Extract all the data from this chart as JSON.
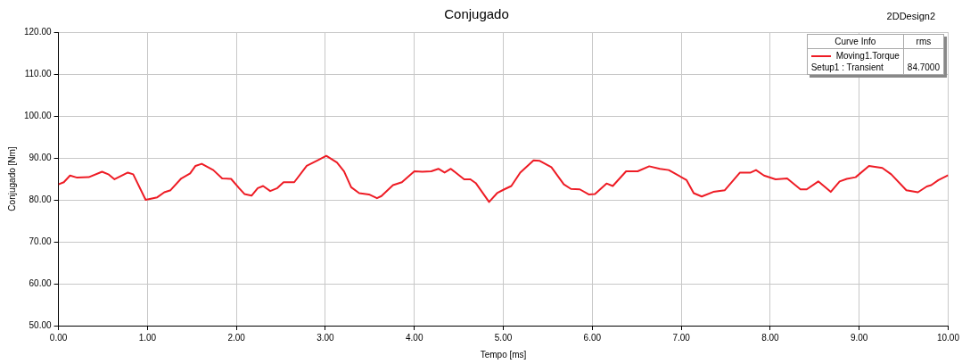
{
  "chart_data": {
    "type": "line",
    "title": "Conjugado",
    "xlabel": "Tempo [ms]",
    "ylabel": "Conjugado [Nm]",
    "xlim": [
      0,
      10
    ],
    "ylim": [
      50,
      120
    ],
    "xticks": [
      {
        "value": 0,
        "label": "0.00"
      },
      {
        "value": 1,
        "label": "1.00"
      },
      {
        "value": 2,
        "label": "2.00"
      },
      {
        "value": 3,
        "label": "3.00"
      },
      {
        "value": 4,
        "label": "4.00"
      },
      {
        "value": 5,
        "label": "5.00"
      },
      {
        "value": 6,
        "label": "6.00"
      },
      {
        "value": 7,
        "label": "7.00"
      },
      {
        "value": 8,
        "label": "8.00"
      },
      {
        "value": 9,
        "label": "9.00"
      },
      {
        "value": 10,
        "label": "10.00"
      }
    ],
    "yticks": [
      {
        "value": 50,
        "label": "50.00"
      },
      {
        "value": 60,
        "label": "60.00"
      },
      {
        "value": 70,
        "label": "70.00"
      },
      {
        "value": 80,
        "label": "80.00"
      },
      {
        "value": 90,
        "label": "90.00"
      },
      {
        "value": 100,
        "label": "100.00"
      },
      {
        "value": 110,
        "label": "110.00"
      },
      {
        "value": 120,
        "label": "120.00"
      }
    ],
    "grid": true,
    "legend": "top right",
    "legend_title": "Curve Info",
    "annotations": [
      "rms",
      "Setup1 : Transient",
      "84.7000",
      "2DDesign2"
    ],
    "x": [
      0,
      0.06,
      0.13,
      0.21,
      0.34,
      0.49,
      0.56,
      0.63,
      0.78,
      0.84,
      0.98,
      1.11,
      1.19,
      1.26,
      1.38,
      1.48,
      1.54,
      1.61,
      1.74,
      1.84,
      1.94,
      2.03,
      2.09,
      2.17,
      2.24,
      2.3,
      2.38,
      2.46,
      2.53,
      2.65,
      2.79,
      2.91,
      3.01,
      3.13,
      3.21,
      3.29,
      3.38,
      3.49,
      3.58,
      3.63,
      3.76,
      3.86,
      4.0,
      4.09,
      4.19,
      4.27,
      4.34,
      4.41,
      4.56,
      4.63,
      4.69,
      4.84,
      4.93,
      5.01,
      5.09,
      5.19,
      5.34,
      5.41,
      5.54,
      5.68,
      5.76,
      5.86,
      5.96,
      6.03,
      6.16,
      6.23,
      6.38,
      6.51,
      6.64,
      6.76,
      6.86,
      7.06,
      7.14,
      7.23,
      7.36,
      7.49,
      7.66,
      7.78,
      7.84,
      7.93,
      8.06,
      8.19,
      8.34,
      8.41,
      8.54,
      8.68,
      8.78,
      8.86,
      8.96,
      9.11,
      9.26,
      9.36,
      9.53,
      9.66,
      9.76,
      9.81,
      9.89,
      10.0
    ],
    "series": [
      {
        "name": "Moving1.Torque",
        "color": "#ee1c25",
        "values": [
          83.7,
          84.2,
          85.8,
          85.3,
          85.4,
          86.7,
          86.1,
          84.9,
          86.5,
          86.1,
          80.0,
          80.6,
          81.8,
          82.3,
          85.1,
          86.3,
          88.1,
          88.6,
          87.1,
          85.1,
          85.0,
          82.8,
          81.4,
          81.0,
          82.8,
          83.3,
          82.1,
          82.8,
          84.2,
          84.2,
          88.1,
          89.4,
          90.5,
          88.9,
          86.8,
          83.0,
          81.6,
          81.3,
          80.4,
          80.9,
          83.5,
          84.2,
          86.8,
          86.7,
          86.8,
          87.4,
          86.5,
          87.4,
          84.9,
          84.9,
          84.0,
          79.5,
          81.6,
          82.5,
          83.3,
          86.5,
          89.4,
          89.3,
          87.8,
          83.7,
          82.6,
          82.5,
          81.3,
          81.4,
          83.9,
          83.3,
          86.8,
          86.8,
          88.0,
          87.4,
          87.1,
          84.7,
          81.6,
          80.8,
          81.9,
          82.3,
          86.5,
          86.5,
          87.1,
          85.8,
          84.9,
          85.1,
          82.5,
          82.5,
          84.4,
          81.9,
          84.4,
          85.0,
          85.4,
          88.1,
          87.6,
          86.1,
          82.3,
          81.8,
          83.2,
          83.5,
          84.7,
          85.9
        ]
      }
    ]
  }
}
